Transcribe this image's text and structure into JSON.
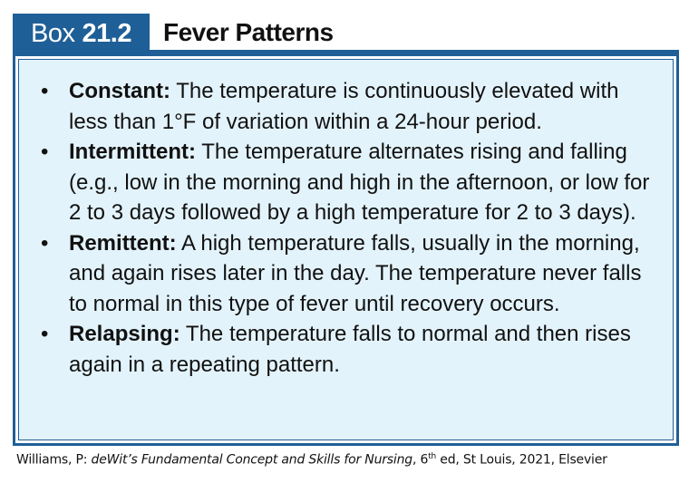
{
  "header": {
    "box_word": "Box",
    "box_number": "21.2",
    "title": "Fever Patterns"
  },
  "patterns": [
    {
      "term": "Constant:",
      "description": "The temperature is continuously elevated with less than 1°F of variation within a 24-hour period."
    },
    {
      "term": "Intermittent:",
      "description": "The temperature alternates rising and falling (e.g., low in the morning and high in the afternoon, or low for 2 to 3 days followed by a high temperature for 2 to 3 days)."
    },
    {
      "term": "Remittent:",
      "description": "A high temperature falls, usually in the morning, and again rises later in the day. The temperature never falls to normal in this type of fever until recovery occurs."
    },
    {
      "term": "Relapsing:",
      "description": "The temperature falls to normal and then rises again in a repeating pattern."
    }
  ],
  "citation": {
    "author": "Williams, P: ",
    "book_title": "deWit’s Fundamental Concept and Skills for Nursing",
    "edition_num": ", 6",
    "edition_sup": "th",
    "rest": " ed, St Louis, 2021, Elsevier"
  },
  "colors": {
    "accent": "#1f5f97",
    "box_background": "#e3f3fb"
  }
}
